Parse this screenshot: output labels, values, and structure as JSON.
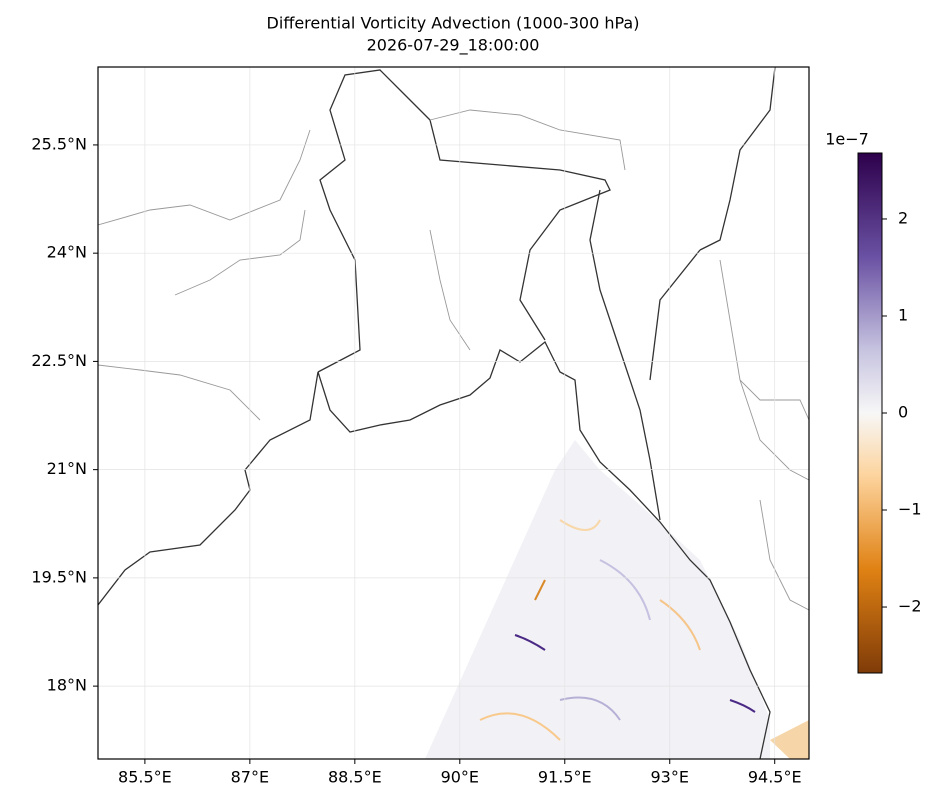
{
  "chart_data": {
    "type": "map",
    "title": "Differential Vorticity Advection (1000-300 hPa)",
    "subtitle": "2026-07-29_18:00:00",
    "xlim": [
      84.83,
      94.99
    ],
    "ylim": [
      16.99,
      26.58
    ],
    "xticks": [
      {
        "value": 85.5,
        "label": "85.5°E"
      },
      {
        "value": 87,
        "label": "87°E"
      },
      {
        "value": 88.5,
        "label": "88.5°E"
      },
      {
        "value": 90,
        "label": "90°E"
      },
      {
        "value": 91.5,
        "label": "91.5°E"
      },
      {
        "value": 93,
        "label": "93°E"
      },
      {
        "value": 94.5,
        "label": "94.5°E"
      }
    ],
    "yticks": [
      {
        "value": 25.5,
        "label": "25.5°N"
      },
      {
        "value": 24,
        "label": "24°N"
      },
      {
        "value": 22.5,
        "label": "22.5°N"
      },
      {
        "value": 21,
        "label": "21°N"
      },
      {
        "value": 19.5,
        "label": "19.5°N"
      },
      {
        "value": 18,
        "label": "18°N"
      }
    ],
    "colorbar": {
      "exponent_label": "1e−7",
      "clim": [
        -2.68,
        2.68
      ],
      "ticks": [
        {
          "value": 2,
          "label": "2"
        },
        {
          "value": 1,
          "label": "1"
        },
        {
          "value": 0,
          "label": "0"
        },
        {
          "value": -1,
          "label": "−1"
        },
        {
          "value": -2,
          "label": "−2"
        }
      ]
    }
  }
}
